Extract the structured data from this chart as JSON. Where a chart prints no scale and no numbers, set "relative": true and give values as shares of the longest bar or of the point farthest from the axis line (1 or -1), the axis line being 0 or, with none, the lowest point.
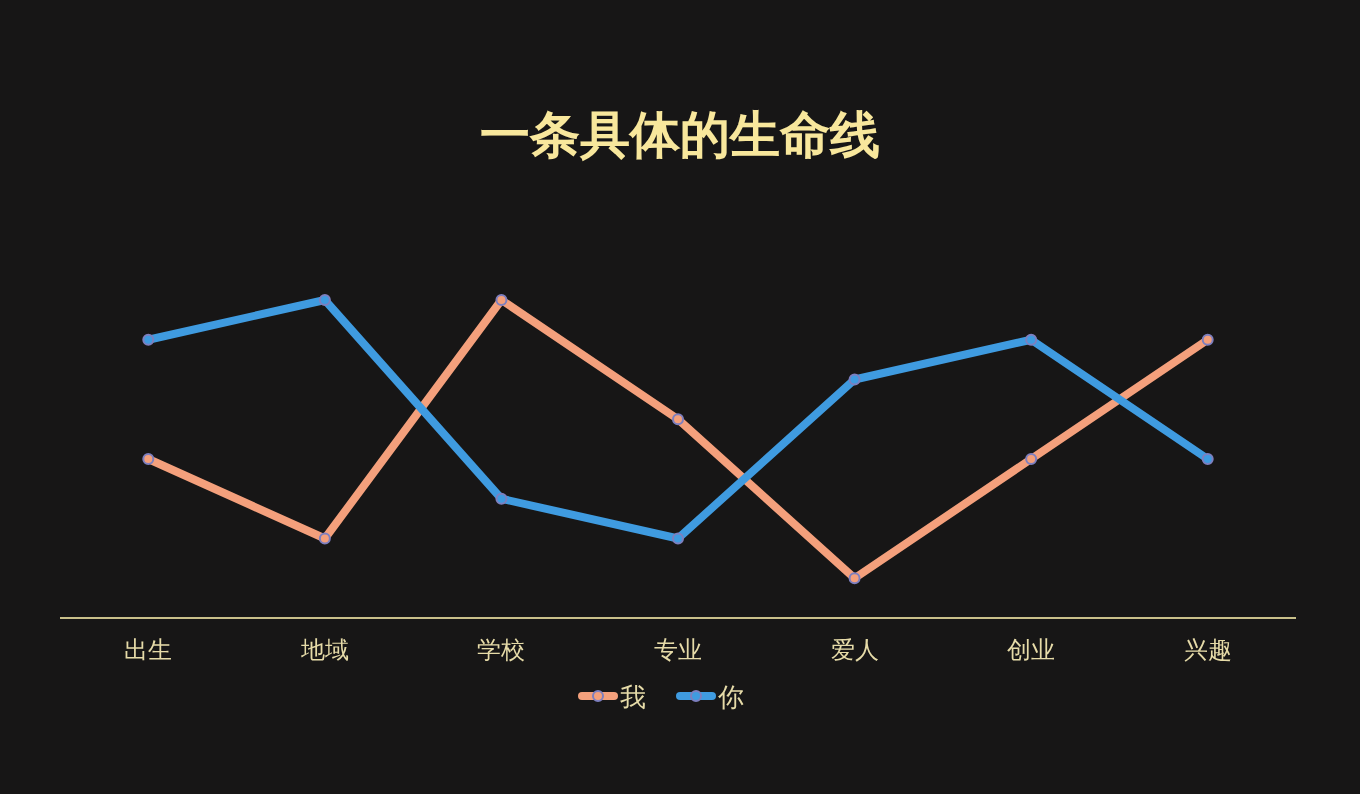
{
  "chart_data": {
    "type": "line",
    "title": "一条具体的生命线",
    "categories": [
      "出生",
      "地域",
      "学校",
      "专业",
      "爱人",
      "创业",
      "兴趣"
    ],
    "relative": true,
    "marker": "circle",
    "legend": "bottom",
    "series": [
      {
        "name": "我",
        "color": "#f4a07c",
        "values": [
          0.5,
          0.25,
          1,
          0.625,
          0.125,
          0.5,
          0.875
        ]
      },
      {
        "name": "你",
        "color": "#3f9be0",
        "values": [
          0.875,
          1,
          0.375,
          0.25,
          0.75,
          0.875,
          0.5
        ]
      }
    ]
  }
}
